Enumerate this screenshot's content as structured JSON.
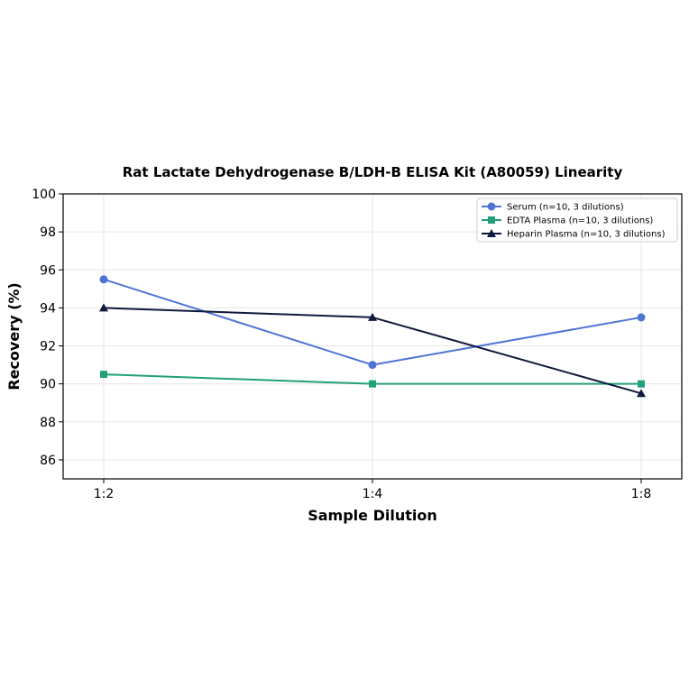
{
  "chart_data": {
    "type": "line",
    "title": "Rat Lactate Dehydrogenase B/LDH-B ELISA Kit (A80059) Linearity",
    "xlabel": "Sample Dilution",
    "ylabel": "Recovery (%)",
    "categories": [
      "1:2",
      "1:4",
      "1:8"
    ],
    "ylim": [
      85,
      100
    ],
    "yticks": [
      86,
      88,
      90,
      92,
      94,
      96,
      98,
      100
    ],
    "grid": true,
    "legend_position": "top-right",
    "series": [
      {
        "name": "Serum (n=10, 3 dilutions)",
        "values": [
          95.5,
          91.0,
          93.5
        ],
        "color": "#4f74d6",
        "marker": "circle"
      },
      {
        "name": "EDTA Plasma (n=10, 3 dilutions)",
        "values": [
          90.5,
          90.0,
          90.0
        ],
        "color": "#22a07a",
        "marker": "square"
      },
      {
        "name": "Heparin Plasma (n=10, 3 dilutions)",
        "values": [
          94.0,
          93.5,
          89.5
        ],
        "color": "#0f1a3c",
        "marker": "triangle"
      }
    ]
  }
}
